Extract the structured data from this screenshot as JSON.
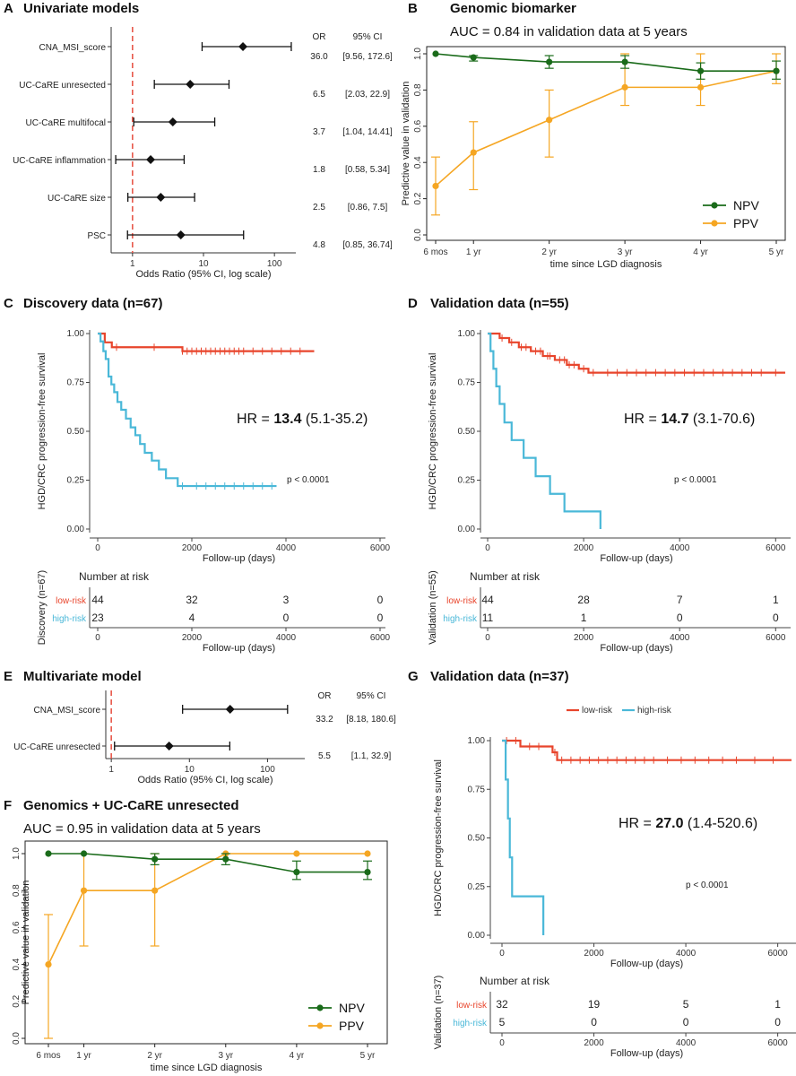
{
  "colors": {
    "npv": "#1a6b1a",
    "ppv": "#f5a623",
    "low": "#e8452c",
    "high": "#4ab8d8",
    "ref": "#e8574a",
    "axis": "#333333"
  },
  "chart_data": [
    {
      "id": "A",
      "type": "forest",
      "panel_label": "A",
      "title": "Univariate models",
      "xlabel": "Odds Ratio (95% CI, log scale)",
      "scale": "log",
      "xlim": [
        0.5,
        200
      ],
      "xticks": [
        1,
        10,
        100
      ],
      "xtick_labels": [
        "1",
        "10",
        "100"
      ],
      "header_or": "OR",
      "header_ci": "95% CI",
      "rows": [
        {
          "label": "CNA_MSI_score",
          "or": 36.0,
          "lo": 9.56,
          "hi": 172.6,
          "or_text": "36.0",
          "ci_text": "[9.56, 172.6]"
        },
        {
          "label": "UC-CaRE unresected",
          "or": 6.5,
          "lo": 2.03,
          "hi": 22.9,
          "or_text": "6.5",
          "ci_text": "[2.03, 22.9]"
        },
        {
          "label": "UC-CaRE multifocal",
          "or": 3.7,
          "lo": 1.04,
          "hi": 14.41,
          "or_text": "3.7",
          "ci_text": "[1.04, 14.41]"
        },
        {
          "label": "UC-CaRE inflammation",
          "or": 1.8,
          "lo": 0.58,
          "hi": 5.34,
          "or_text": "1.8",
          "ci_text": "[0.58, 5.34]"
        },
        {
          "label": "UC-CaRE size",
          "or": 2.5,
          "lo": 0.86,
          "hi": 7.5,
          "or_text": "2.5",
          "ci_text": "[0.86, 7.5]"
        },
        {
          "label": "PSC",
          "or": 4.8,
          "lo": 0.85,
          "hi": 36.74,
          "or_text": "4.8",
          "ci_text": "[0.85, 36.74]"
        }
      ]
    },
    {
      "id": "B",
      "type": "line",
      "panel_label": "B",
      "title": "Genomic biomarker",
      "subtitle": "AUC = 0.84 in validation data at 5 years",
      "xlabel": "time since LGD diagnosis",
      "ylabel": "Predictive value in validation",
      "ylim": [
        0,
        1
      ],
      "yticks": [
        "0.0",
        "0.2",
        "0.4",
        "0.6",
        "0.8",
        "1.0"
      ],
      "categories": [
        "6 mos",
        "1 yr",
        "2 yr",
        "3 yr",
        "4 yr",
        "5 yr"
      ],
      "x": [
        0.5,
        1,
        2,
        3,
        4,
        5
      ],
      "series": [
        {
          "name": "NPV",
          "values": [
            1.0,
            0.98,
            0.955,
            0.955,
            0.905,
            0.905
          ],
          "lo": [
            1.0,
            0.96,
            0.92,
            0.92,
            0.86,
            0.86
          ],
          "hi": [
            1.0,
            0.99,
            0.99,
            0.99,
            0.95,
            0.96
          ]
        },
        {
          "name": "PPV",
          "values": [
            0.27,
            0.455,
            0.635,
            0.815,
            0.815,
            0.905
          ],
          "lo": [
            0.11,
            0.25,
            0.43,
            0.715,
            0.715,
            0.835
          ],
          "hi": [
            0.43,
            0.625,
            0.8,
            1.0,
            1.0,
            1.0
          ]
        }
      ]
    },
    {
      "id": "C",
      "type": "km",
      "panel_label": "C",
      "title": "Discovery data (n=67)",
      "xlabel": "Follow-up (days)",
      "ylabel": "HGD/CRC progression-free survival",
      "xlim": [
        0,
        6000
      ],
      "ylim": [
        0,
        1
      ],
      "xticks": [
        "0",
        "2000",
        "4000",
        "6000"
      ],
      "yticks": [
        "0.00",
        "0.25",
        "0.50",
        "0.75",
        "1.00"
      ],
      "hr_prefix": "HR = ",
      "hr_value": "13.4",
      "hr_ci": "(5.1-35.2)",
      "pvalue": "p < 0.0001",
      "risk_title": "Number at risk",
      "risk_ylabel": "Discovery (n=67)",
      "risk_rows": [
        {
          "name": "low-risk",
          "counts": [
            "44",
            "32",
            "3",
            "0"
          ]
        },
        {
          "name": "high-risk",
          "counts": [
            "23",
            "4",
            "0",
            "0"
          ]
        }
      ],
      "series": [
        {
          "name": "low-risk",
          "times": [
            0,
            150,
            300,
            1800,
            4600
          ],
          "surv": [
            1.0,
            0.955,
            0.93,
            0.91,
            0.91
          ],
          "censor_times": [
            400,
            1200,
            1800,
            1900,
            2000,
            2100,
            2200,
            2300,
            2400,
            2500,
            2600,
            2700,
            2800,
            2900,
            3000,
            3100,
            3300,
            3500,
            3700,
            3900,
            4100,
            4300
          ]
        },
        {
          "name": "high-risk",
          "times": [
            0,
            60,
            120,
            170,
            230,
            290,
            350,
            420,
            500,
            600,
            700,
            800,
            900,
            1000,
            1150,
            1300,
            1450,
            1700,
            3800
          ],
          "surv": [
            1.0,
            0.96,
            0.91,
            0.87,
            0.78,
            0.74,
            0.7,
            0.65,
            0.61,
            0.565,
            0.52,
            0.48,
            0.435,
            0.39,
            0.35,
            0.305,
            0.26,
            0.22,
            0.22
          ],
          "censor_times": [
            1800,
            2100,
            2300,
            2500,
            2700,
            2900,
            3100,
            3300,
            3500,
            3700
          ]
        }
      ]
    },
    {
      "id": "D",
      "type": "km",
      "panel_label": "D",
      "title": "Validation data (n=55)",
      "xlabel": "Follow-up (days)",
      "ylabel": "HGD/CRC progression-free survival",
      "xlim": [
        0,
        6200
      ],
      "ylim": [
        0,
        1
      ],
      "xticks": [
        "0",
        "2000",
        "4000",
        "6000"
      ],
      "yticks": [
        "0.00",
        "0.25",
        "0.50",
        "0.75",
        "1.00"
      ],
      "hr_prefix": "HR = ",
      "hr_value": "14.7",
      "hr_ci": "(3.1-70.6)",
      "pvalue": "p < 0.0001",
      "risk_title": "Number at risk",
      "risk_ylabel": "Validation (n=55)",
      "risk_rows": [
        {
          "name": "low-risk",
          "counts": [
            "44",
            "28",
            "7",
            "1"
          ]
        },
        {
          "name": "high-risk",
          "counts": [
            "11",
            "1",
            "0",
            "0"
          ]
        }
      ],
      "series": [
        {
          "name": "low-risk",
          "times": [
            0,
            250,
            450,
            650,
            900,
            1150,
            1400,
            1650,
            1900,
            2100,
            2400,
            6200
          ],
          "surv": [
            1.0,
            0.977,
            0.955,
            0.93,
            0.91,
            0.885,
            0.865,
            0.84,
            0.82,
            0.8,
            0.8,
            0.8
          ],
          "censor_times": [
            300,
            500,
            700,
            800,
            1000,
            1100,
            1250,
            1300,
            1500,
            1600,
            1700,
            1800,
            2000,
            2200,
            2500,
            2700,
            2900,
            3100,
            3300,
            3500,
            3700,
            3900,
            4100,
            4300,
            4500,
            4700,
            4900,
            5100,
            5300,
            5500,
            5700,
            6000
          ]
        },
        {
          "name": "high-risk",
          "times": [
            0,
            60,
            120,
            180,
            250,
            350,
            500,
            750,
            1000,
            1300,
            1600,
            2100,
            2350
          ],
          "surv": [
            1.0,
            0.91,
            0.82,
            0.73,
            0.64,
            0.545,
            0.455,
            0.364,
            0.27,
            0.18,
            0.09,
            0.09,
            0.0
          ],
          "censor_times": []
        }
      ]
    },
    {
      "id": "E",
      "type": "forest",
      "panel_label": "E",
      "title": "Multivariate model",
      "xlabel": "Odds Ratio (95% CI, log scale)",
      "scale": "log",
      "xlim": [
        0.85,
        300
      ],
      "xticks": [
        1,
        10,
        100
      ],
      "xtick_labels": [
        "1",
        "10",
        "100"
      ],
      "header_or": "OR",
      "header_ci": "95% CI",
      "rows": [
        {
          "label": "CNA_MSI_score",
          "or": 33.2,
          "lo": 8.18,
          "hi": 180.6,
          "or_text": "33.2",
          "ci_text": "[8.18, 180.6]"
        },
        {
          "label": "UC-CaRE unresected",
          "or": 5.5,
          "lo": 1.1,
          "hi": 32.9,
          "or_text": "5.5",
          "ci_text": "[1.1, 32.9]"
        }
      ]
    },
    {
      "id": "F",
      "type": "line",
      "panel_label": "F",
      "title": "Genomics + UC-CaRE unresected",
      "subtitle": "AUC = 0.95 in validation data at 5 years",
      "xlabel": "time since LGD diagnosis",
      "ylabel": "Predictive value in validation",
      "ylim": [
        0,
        1
      ],
      "yticks": [
        "0.0",
        "0.2",
        "0.4",
        "0.6",
        "0.8",
        "1.0"
      ],
      "categories": [
        "6 mos",
        "1 yr",
        "2 yr",
        "3 yr",
        "4 yr",
        "5 yr"
      ],
      "x": [
        0.5,
        1,
        2,
        3,
        4,
        5
      ],
      "series": [
        {
          "name": "NPV",
          "values": [
            1.0,
            1.0,
            0.97,
            0.97,
            0.9,
            0.9
          ],
          "lo": [
            1.0,
            1.0,
            0.94,
            0.94,
            0.86,
            0.86
          ],
          "hi": [
            1.0,
            1.0,
            1.0,
            1.0,
            0.96,
            0.96
          ]
        },
        {
          "name": "PPV",
          "values": [
            0.4,
            0.8,
            0.8,
            1.0,
            1.0,
            1.0
          ],
          "lo": [
            0.0,
            0.5,
            0.5,
            1.0,
            1.0,
            1.0
          ],
          "hi": [
            0.67,
            1.0,
            1.0,
            1.0,
            1.0,
            1.0
          ]
        }
      ]
    },
    {
      "id": "G",
      "type": "km",
      "panel_label": "G",
      "title": "Validation data (n=37)",
      "xlabel": "Follow-up (days)",
      "ylabel": "HGD/CRC progression-free survival",
      "xlim": [
        0,
        6300
      ],
      "ylim": [
        0,
        1
      ],
      "xticks": [
        "0",
        "2000",
        "4000",
        "6000"
      ],
      "yticks": [
        "0.00",
        "0.25",
        "0.50",
        "0.75",
        "1.00"
      ],
      "hr_prefix": "HR = ",
      "hr_value": "27.0",
      "hr_ci": "(1.4-520.6)",
      "pvalue": "p < 0.0001",
      "legend": [
        "low-risk",
        "high-risk"
      ],
      "risk_title": "Number at risk",
      "risk_ylabel": "Validation (n=37)",
      "risk_rows": [
        {
          "name": "low-risk",
          "counts": [
            "32",
            "19",
            "5",
            "1"
          ]
        },
        {
          "name": "high-risk",
          "counts": [
            "5",
            "0",
            "0",
            "0"
          ]
        }
      ],
      "series": [
        {
          "name": "low-risk",
          "times": [
            0,
            400,
            1100,
            1200,
            6300
          ],
          "surv": [
            1.0,
            0.97,
            0.94,
            0.9,
            0.9
          ],
          "censor_times": [
            100,
            300,
            600,
            800,
            1150,
            1300,
            1500,
            1700,
            1900,
            2100,
            2300,
            2500,
            2700,
            2900,
            3100,
            3300,
            3600,
            3900,
            4200,
            4500,
            4800,
            5100,
            5500,
            5900
          ]
        },
        {
          "name": "high-risk",
          "times": [
            0,
            80,
            130,
            170,
            220,
            900
          ],
          "surv": [
            1.0,
            0.8,
            0.6,
            0.4,
            0.2,
            0.0
          ],
          "censor_times": []
        }
      ]
    }
  ]
}
